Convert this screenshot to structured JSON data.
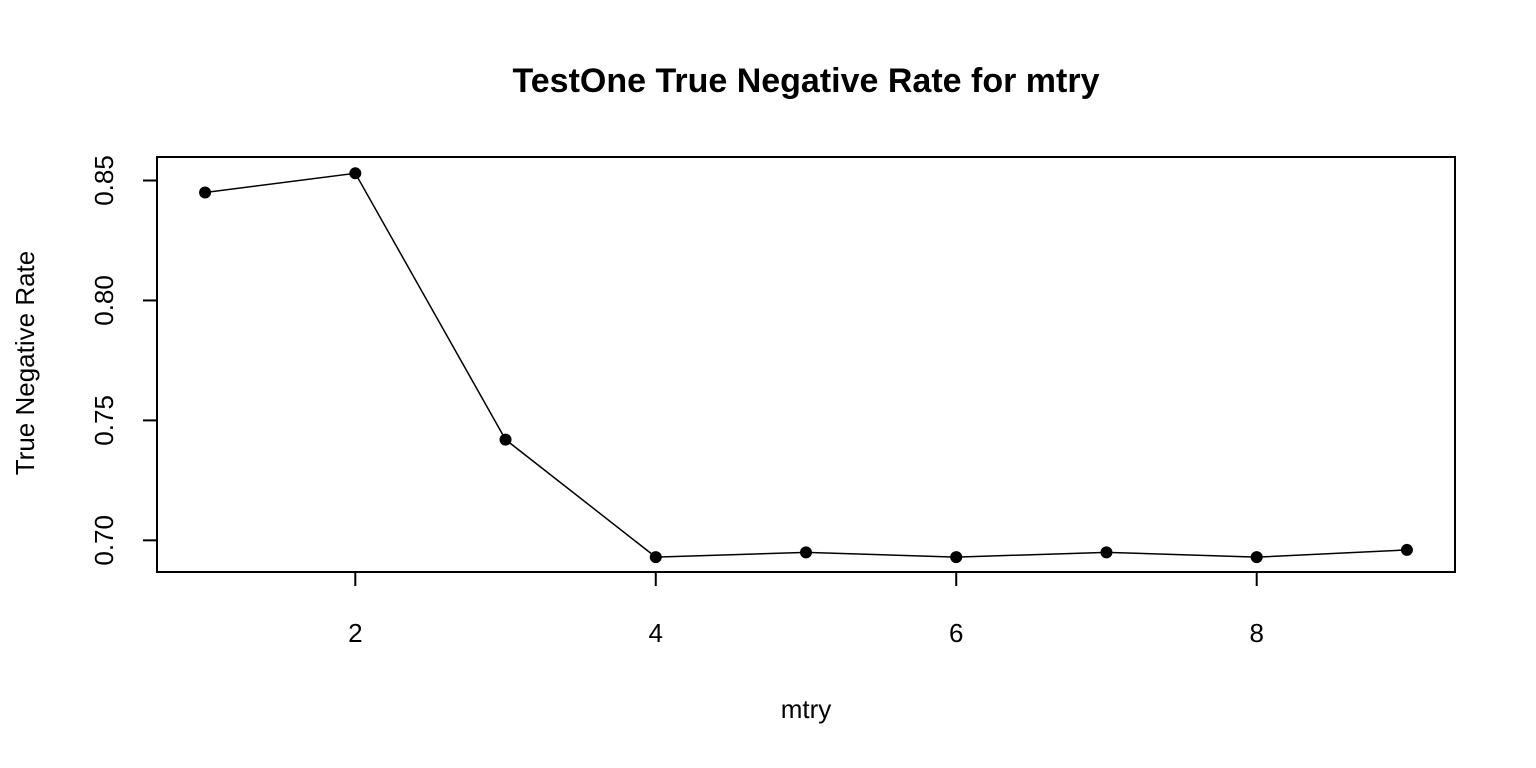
{
  "chart_data": {
    "type": "line",
    "title": "TestOne True Negative Rate for mtry",
    "xlabel": "mtry",
    "ylabel": "True Negative Rate",
    "x": [
      1,
      2,
      3,
      4,
      5,
      6,
      7,
      8,
      9
    ],
    "values": [
      0.845,
      0.853,
      0.742,
      0.693,
      0.695,
      0.693,
      0.695,
      0.693,
      0.696
    ],
    "xlim": [
      0.68,
      9.32
    ],
    "ylim": [
      0.6868,
      0.8598
    ],
    "xticks": [
      2,
      4,
      6,
      8
    ],
    "xtick_labels": [
      "2",
      "4",
      "6",
      "8"
    ],
    "yticks": [
      0.7,
      0.75,
      0.8,
      0.85
    ],
    "ytick_labels": [
      "0.70",
      "0.75",
      "0.80",
      "0.85"
    ],
    "grid": false,
    "markers": "filled-circle",
    "line_color": "#000000",
    "marker_color": "#000000"
  }
}
